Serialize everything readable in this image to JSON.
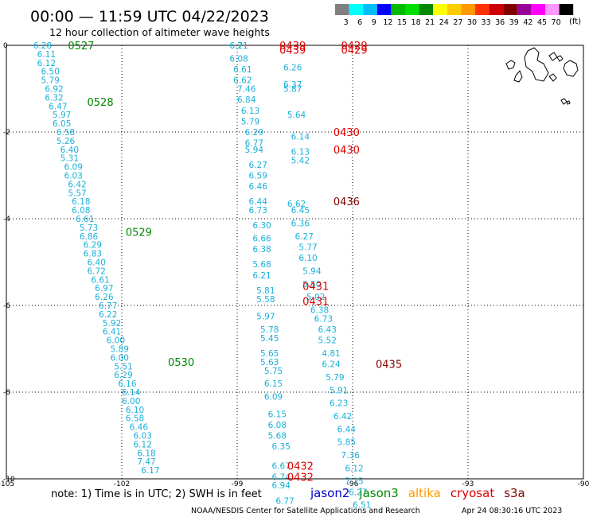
{
  "header": {
    "title": "00:00 — 11:59 UTC 04/22/2023",
    "subtitle": "12 hour collection of altimeter wave heights"
  },
  "color_scale": {
    "colors": [
      "#808080",
      "#00ffff",
      "#00bfff",
      "#0000ff",
      "#00bb00",
      "#00dd00",
      "#008800",
      "#ffff00",
      "#ffcc00",
      "#ff9900",
      "#ff3300",
      "#cc0000",
      "#800000",
      "#990099",
      "#ff00ff",
      "#ff99ff",
      "#000000"
    ],
    "labels": [
      "3",
      "6",
      "9",
      "12",
      "15",
      "18",
      "21",
      "24",
      "27",
      "30",
      "33",
      "36",
      "39",
      "42",
      "45",
      "70"
    ],
    "unit_label": "(ft)"
  },
  "footer": {
    "note": "note:  1) Time is in UTC;  2) SWH is in feet",
    "missions": [
      {
        "name": "jason2",
        "color": "#0000cc"
      },
      {
        "name": "jason3",
        "color": "#008800"
      },
      {
        "name": "altika",
        "color": "#ff9900"
      },
      {
        "name": "cryosat",
        "color": "#dd0000"
      },
      {
        "name": "s3a",
        "color": "#800000"
      }
    ],
    "credit": "NOAA/NESDIS Center for Satellite Applications and Research",
    "timestamp": "Apr 24 08:30:16 UTC 2023"
  },
  "chart_data": {
    "type": "scatter",
    "xlim": [
      -105,
      -90
    ],
    "ylim": [
      -10,
      0
    ],
    "x_ticks": [
      -105,
      -102,
      -99,
      -96,
      -93,
      -90
    ],
    "y_ticks": [
      0,
      -2,
      -4,
      -6,
      -8,
      -10
    ],
    "xlabel": "",
    "ylabel": "",
    "grid": true,
    "value_color": "#1ab0d8",
    "series": [
      {
        "name": "jason3",
        "label_color": "#008800",
        "points": [
          {
            "x": -104.3,
            "y": 0.0,
            "v": "6.28"
          },
          {
            "x": -104.2,
            "y": -0.2,
            "v": "6.11"
          },
          {
            "x": -104.2,
            "y": -0.4,
            "v": "6.12"
          },
          {
            "x": -104.1,
            "y": -0.6,
            "v": "6.50"
          },
          {
            "x": -104.1,
            "y": -0.8,
            "v": "5.79"
          },
          {
            "x": -104.0,
            "y": -1.0,
            "v": "6.92"
          },
          {
            "x": -104.0,
            "y": -1.2,
            "v": "6.32"
          },
          {
            "x": -103.9,
            "y": -1.4,
            "v": "6.47"
          },
          {
            "x": -103.8,
            "y": -1.6,
            "v": "5.97"
          },
          {
            "x": -103.8,
            "y": -1.8,
            "v": "6.05"
          },
          {
            "x": -103.7,
            "y": -2.0,
            "v": "6.58"
          },
          {
            "x": -103.7,
            "y": -2.2,
            "v": "5.26"
          },
          {
            "x": -103.6,
            "y": -2.4,
            "v": "6.40"
          },
          {
            "x": -103.6,
            "y": -2.6,
            "v": "5.31"
          },
          {
            "x": -103.5,
            "y": -2.8,
            "v": "6.09"
          },
          {
            "x": -103.5,
            "y": -3.0,
            "v": "6.03"
          },
          {
            "x": -103.4,
            "y": -3.2,
            "v": "6.42"
          },
          {
            "x": -103.4,
            "y": -3.4,
            "v": "5.57"
          },
          {
            "x": -103.3,
            "y": -3.6,
            "v": "6.18"
          },
          {
            "x": -103.3,
            "y": -3.8,
            "v": "6.08"
          },
          {
            "x": -103.2,
            "y": -4.0,
            "v": "6.61"
          },
          {
            "x": -103.1,
            "y": -4.2,
            "v": "5.73"
          },
          {
            "x": -103.1,
            "y": -4.4,
            "v": "6.86"
          },
          {
            "x": -103.0,
            "y": -4.6,
            "v": "6.29"
          },
          {
            "x": -103.0,
            "y": -4.8,
            "v": "6.83"
          },
          {
            "x": -102.9,
            "y": -5.0,
            "v": "6.40"
          },
          {
            "x": -102.9,
            "y": -5.2,
            "v": "6.72"
          },
          {
            "x": -102.8,
            "y": -5.4,
            "v": "6.61"
          },
          {
            "x": -102.7,
            "y": -5.6,
            "v": "6.97"
          },
          {
            "x": -102.7,
            "y": -5.8,
            "v": "6.26"
          },
          {
            "x": -102.6,
            "y": -6.0,
            "v": "6.77"
          },
          {
            "x": -102.6,
            "y": -6.2,
            "v": "6.22"
          },
          {
            "x": -102.5,
            "y": -6.4,
            "v": "5.92"
          },
          {
            "x": -102.5,
            "y": -6.6,
            "v": "6.41"
          },
          {
            "x": -102.4,
            "y": -6.8,
            "v": "6.00"
          },
          {
            "x": -102.3,
            "y": -7.0,
            "v": "5.89"
          },
          {
            "x": -102.3,
            "y": -7.2,
            "v": "6.00"
          },
          {
            "x": -102.2,
            "y": -7.4,
            "v": "5.51"
          },
          {
            "x": -102.2,
            "y": -7.6,
            "v": "6.29"
          },
          {
            "x": -102.1,
            "y": -7.8,
            "v": "6.16"
          },
          {
            "x": -102.0,
            "y": -8.0,
            "v": "6.14"
          },
          {
            "x": -102.0,
            "y": -8.2,
            "v": "6.00"
          },
          {
            "x": -101.9,
            "y": -8.4,
            "v": "6.10"
          },
          {
            "x": -101.9,
            "y": -8.6,
            "v": "6.58"
          },
          {
            "x": -101.8,
            "y": -8.8,
            "v": "6.46"
          },
          {
            "x": -101.7,
            "y": -9.0,
            "v": "6.03"
          },
          {
            "x": -101.7,
            "y": -9.2,
            "v": "6.12"
          },
          {
            "x": -101.6,
            "y": -9.4,
            "v": "6.18"
          },
          {
            "x": -101.6,
            "y": -9.6,
            "v": "7.47"
          },
          {
            "x": -101.5,
            "y": -9.8,
            "v": "6.17"
          }
        ],
        "time_labels": [
          {
            "x": -103.4,
            "y": 0.0,
            "text": "0527"
          },
          {
            "x": -102.9,
            "y": -1.3,
            "text": "0528"
          },
          {
            "x": -101.9,
            "y": -4.3,
            "text": "0529"
          },
          {
            "x": -100.8,
            "y": -7.3,
            "text": "0530"
          }
        ]
      },
      {
        "name": "cryosat",
        "label_color": "#dd0000",
        "points": [
          {
            "x": -99.2,
            "y": 0.0,
            "v": "6.71"
          },
          {
            "x": -99.2,
            "y": 0.0,
            "v": "6.21"
          },
          {
            "x": -99.2,
            "y": -0.3,
            "v": "6.08"
          },
          {
            "x": -99.1,
            "y": -0.55,
            "v": "6.61"
          },
          {
            "x": -99.1,
            "y": -0.8,
            "v": "6.62"
          },
          {
            "x": -99.0,
            "y": -1.0,
            "v": "7.46"
          },
          {
            "x": -99.0,
            "y": -1.25,
            "v": "6.84"
          },
          {
            "x": -98.9,
            "y": -1.5,
            "v": "6.13"
          },
          {
            "x": -98.9,
            "y": -1.75,
            "v": "5.79"
          },
          {
            "x": -98.8,
            "y": -2.0,
            "v": "6.29"
          },
          {
            "x": -98.8,
            "y": -2.25,
            "v": "6.77"
          },
          {
            "x": -98.8,
            "y": -2.4,
            "v": "5.94"
          },
          {
            "x": -98.7,
            "y": -2.75,
            "v": "6.27"
          },
          {
            "x": -98.7,
            "y": -3.0,
            "v": "6.59"
          },
          {
            "x": -98.7,
            "y": -3.25,
            "v": "6.46"
          },
          {
            "x": -98.7,
            "y": -3.6,
            "v": "6.44"
          },
          {
            "x": -98.7,
            "y": -3.8,
            "v": "6.73"
          },
          {
            "x": -98.6,
            "y": -4.15,
            "v": "6.30"
          },
          {
            "x": -98.6,
            "y": -4.45,
            "v": "6.66"
          },
          {
            "x": -98.6,
            "y": -4.7,
            "v": "6.38"
          },
          {
            "x": -98.6,
            "y": -5.05,
            "v": "5.68"
          },
          {
            "x": -98.6,
            "y": -5.3,
            "v": "6.21"
          },
          {
            "x": -98.5,
            "y": -5.65,
            "v": "5.81"
          },
          {
            "x": -98.5,
            "y": -5.85,
            "v": "5.58"
          },
          {
            "x": -98.5,
            "y": -6.25,
            "v": "5.97"
          },
          {
            "x": -98.4,
            "y": -6.55,
            "v": "5.78"
          },
          {
            "x": -98.4,
            "y": -6.75,
            "v": "5.45"
          },
          {
            "x": -98.4,
            "y": -7.1,
            "v": "5.65"
          },
          {
            "x": -98.4,
            "y": -7.3,
            "v": "5.63"
          },
          {
            "x": -98.3,
            "y": -7.5,
            "v": "5.75"
          },
          {
            "x": -98.3,
            "y": -7.8,
            "v": "6.15"
          },
          {
            "x": -98.3,
            "y": -8.1,
            "v": "6.09"
          },
          {
            "x": -98.2,
            "y": -8.5,
            "v": "6.15"
          },
          {
            "x": -98.2,
            "y": -8.75,
            "v": "6.08"
          },
          {
            "x": -98.2,
            "y": -9.0,
            "v": "5.68"
          },
          {
            "x": -98.1,
            "y": -9.25,
            "v": "6.35"
          },
          {
            "x": -98.1,
            "y": -9.7,
            "v": "6.67"
          },
          {
            "x": -98.1,
            "y": -9.95,
            "v": "6.74"
          },
          {
            "x": -98.1,
            "y": -10.15,
            "v": "6.94"
          },
          {
            "x": -98.0,
            "y": -10.5,
            "v": "6.77"
          }
        ],
        "time_labels": [
          {
            "x": -97.9,
            "y": 0.0,
            "text": "0439"
          },
          {
            "x": -97.9,
            "y": -0.1,
            "text": "0439"
          },
          {
            "x": -96.3,
            "y": -0.0,
            "text": "0429"
          },
          {
            "x": -96.3,
            "y": -0.1,
            "text": "0429"
          },
          {
            "x": -96.5,
            "y": -2.0,
            "text": "0430"
          },
          {
            "x": -96.5,
            "y": -2.4,
            "text": "0430"
          },
          {
            "x": -97.3,
            "y": -5.55,
            "text": "0431"
          },
          {
            "x": -97.3,
            "y": -5.9,
            "text": "0431"
          },
          {
            "x": -97.7,
            "y": -9.7,
            "text": "0432"
          },
          {
            "x": -97.7,
            "y": -9.95,
            "text": "0432"
          }
        ]
      },
      {
        "name": "s3a",
        "label_color": "#800000",
        "points": [
          {
            "x": -97.8,
            "y": -0.5,
            "v": "6.26"
          },
          {
            "x": -97.8,
            "y": -0.9,
            "v": "6.37"
          },
          {
            "x": -97.8,
            "y": -1.0,
            "v": "5.87"
          },
          {
            "x": -97.7,
            "y": -1.6,
            "v": "5.64"
          },
          {
            "x": -97.6,
            "y": -2.1,
            "v": "6.14"
          },
          {
            "x": -97.6,
            "y": -2.45,
            "v": "6.13"
          },
          {
            "x": -97.6,
            "y": -2.65,
            "v": "5.42"
          },
          {
            "x": -97.7,
            "y": -3.65,
            "v": "6.62"
          },
          {
            "x": -97.6,
            "y": -3.8,
            "v": "6.45"
          },
          {
            "x": -97.6,
            "y": -4.1,
            "v": "6.36"
          },
          {
            "x": -97.5,
            "y": -4.4,
            "v": "6.27"
          },
          {
            "x": -97.4,
            "y": -4.65,
            "v": "5.77"
          },
          {
            "x": -97.4,
            "y": -4.9,
            "v": "6.10"
          },
          {
            "x": -97.3,
            "y": -5.2,
            "v": "5.94"
          },
          {
            "x": -97.3,
            "y": -5.5,
            "v": "5.50"
          },
          {
            "x": -97.2,
            "y": -5.8,
            "v": "5.02"
          },
          {
            "x": -97.1,
            "y": -6.1,
            "v": "6.38"
          },
          {
            "x": -97.0,
            "y": -6.3,
            "v": "6.73"
          },
          {
            "x": -96.9,
            "y": -6.55,
            "v": "6.43"
          },
          {
            "x": -96.9,
            "y": -6.8,
            "v": "5.52"
          },
          {
            "x": -96.8,
            "y": -7.1,
            "v": "4.81"
          },
          {
            "x": -96.8,
            "y": -7.35,
            "v": "6.24"
          },
          {
            "x": -96.7,
            "y": -7.65,
            "v": "5.79"
          },
          {
            "x": -96.6,
            "y": -7.95,
            "v": "5.91"
          },
          {
            "x": -96.6,
            "y": -8.25,
            "v": "6.23"
          },
          {
            "x": -96.5,
            "y": -8.55,
            "v": "6.42"
          },
          {
            "x": -96.4,
            "y": -8.85,
            "v": "6.44"
          },
          {
            "x": -96.4,
            "y": -9.15,
            "v": "5.85"
          },
          {
            "x": -96.3,
            "y": -9.45,
            "v": "7.36"
          },
          {
            "x": -96.2,
            "y": -9.75,
            "v": "6.12"
          },
          {
            "x": -96.2,
            "y": -10.05,
            "v": "7.15"
          },
          {
            "x": -96.1,
            "y": -10.3,
            "v": "6.27"
          },
          {
            "x": -96.0,
            "y": -10.6,
            "v": "6.51"
          }
        ],
        "time_labels": [
          {
            "x": -96.5,
            "y": -3.6,
            "text": "0436"
          },
          {
            "x": -95.4,
            "y": -7.35,
            "text": "0435"
          }
        ]
      }
    ]
  }
}
